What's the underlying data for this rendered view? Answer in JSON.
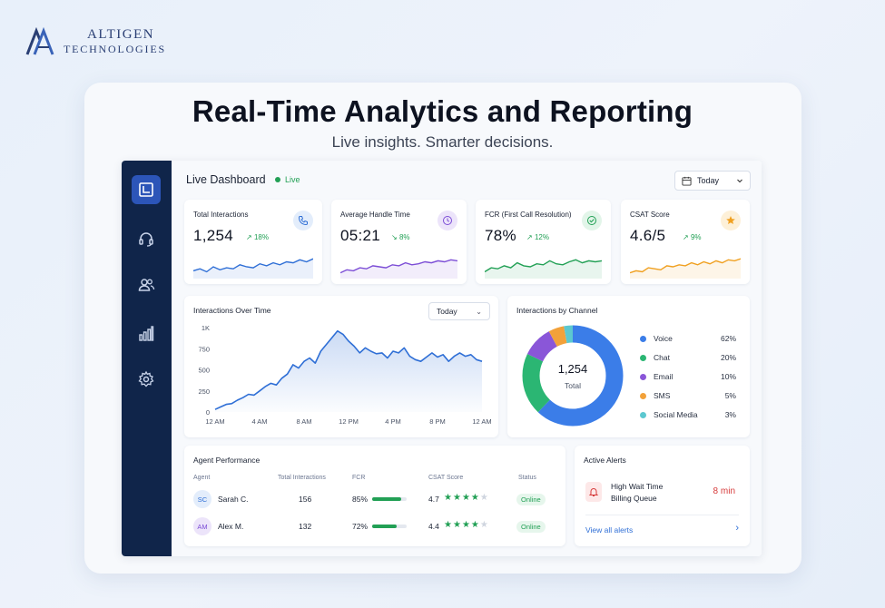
{
  "brand": {
    "line1": "Altigen",
    "line2": "Technologies",
    "line1_display": "ALTIGEN",
    "line2_display": "TECHNOLOGIES"
  },
  "headline": "Real-Time Analytics and Reporting",
  "subheadline": "Live insights. Smarter decisions.",
  "sidebar": {
    "items": [
      {
        "icon": "dashboard-icon",
        "active": true
      },
      {
        "icon": "headset-icon",
        "active": false
      },
      {
        "icon": "users-icon",
        "active": false
      },
      {
        "icon": "bar-chart-icon",
        "active": false
      },
      {
        "icon": "gear-icon",
        "active": false
      }
    ]
  },
  "dashboard": {
    "title": "Live Dashboard",
    "live_label": "Live",
    "date_filter": "Today"
  },
  "kpis": [
    {
      "label": "Total Interactions",
      "value": "1,254",
      "trend": "18%",
      "trend_dir": "up",
      "icon": "phone-icon",
      "color": "#2f6fd6",
      "icon_bg": "#e3edfb"
    },
    {
      "label": "Average Handle Time",
      "value": "05:21",
      "trend": "8%",
      "trend_dir": "down",
      "icon": "clock-icon",
      "color": "#7c4dd6",
      "icon_bg": "#ece4fa"
    },
    {
      "label": "FCR (First Call Resolution)",
      "value": "78%",
      "trend": "12%",
      "trend_dir": "up",
      "icon": "check-circle-icon",
      "color": "#22a055",
      "icon_bg": "#e2f5e9"
    },
    {
      "label": "CSAT Score",
      "value": "4.6/5",
      "trend": "9%",
      "trend_dir": "up",
      "icon": "star-icon",
      "color": "#f0a020",
      "icon_bg": "#fdf0d8"
    }
  ],
  "interactions_over_time": {
    "title": "Interactions Over Time",
    "filter": "Today",
    "chart_data": {
      "type": "area",
      "x_ticks": [
        "12 AM",
        "4 AM",
        "8 AM",
        "12 PM",
        "4 PM",
        "8 PM",
        "12 AM"
      ],
      "y_ticks": [
        "0",
        "250",
        "500",
        "750",
        "1K"
      ],
      "ylim": [
        0,
        1000
      ],
      "x": [
        0,
        0.5,
        1,
        1.5,
        2,
        2.5,
        3,
        3.5,
        4,
        4.5,
        5,
        5.5,
        6,
        6.5,
        7,
        7.5,
        8,
        8.5,
        9,
        9.5,
        10,
        10.5,
        11,
        11.5,
        12,
        12.5,
        13,
        13.5,
        14,
        14.5,
        15,
        15.5,
        16,
        16.5,
        17,
        17.5,
        18,
        18.5,
        19,
        19.5,
        20,
        20.5,
        21,
        21.5,
        22,
        22.5,
        23,
        23.5,
        24
      ],
      "y": [
        30,
        60,
        90,
        100,
        140,
        170,
        210,
        200,
        250,
        300,
        340,
        320,
        400,
        450,
        560,
        520,
        600,
        640,
        580,
        720,
        800,
        880,
        960,
        920,
        840,
        780,
        700,
        760,
        720,
        690,
        700,
        640,
        720,
        700,
        760,
        660,
        620,
        600,
        650,
        700,
        650,
        680,
        600,
        660,
        700,
        660,
        680,
        620,
        600
      ],
      "color": "#2f6fd6"
    }
  },
  "interactions_by_channel": {
    "title": "Interactions by Channel",
    "center_value": "1,254",
    "center_label": "Total",
    "chart_data": {
      "type": "pie",
      "labels": [
        "Voice",
        "Chat",
        "Email",
        "SMS",
        "Social Media"
      ],
      "values": [
        62,
        20,
        10,
        5,
        3
      ],
      "display": [
        "62%",
        "20%",
        "10%",
        "5%",
        "3%"
      ],
      "colors": [
        "#3b7de8",
        "#2bb673",
        "#8a56d8",
        "#f2a13a",
        "#5cc8d0"
      ]
    }
  },
  "agent_performance": {
    "title": "Agent Performance",
    "columns": [
      "Agent",
      "Total Interactions",
      "FCR",
      "CSAT Score",
      "Status"
    ],
    "rows": [
      {
        "initials": "SC",
        "name": "Sarah C.",
        "total": "156",
        "fcr": "85%",
        "fcr_value": 0.85,
        "csat": "4.7",
        "stars": 4,
        "status": "Online",
        "avatar_bg": "#e3edfb",
        "avatar_fg": "#2f6fd6"
      },
      {
        "initials": "AM",
        "name": "Alex M.",
        "total": "132",
        "fcr": "72%",
        "fcr_value": 0.72,
        "csat": "4.4",
        "stars": 4,
        "status": "Online",
        "avatar_bg": "#ece4fa",
        "avatar_fg": "#7c4dd6"
      }
    ]
  },
  "alerts": {
    "title": "Active Alerts",
    "items": [
      {
        "icon": "bell-icon",
        "line1": "High Wait Time",
        "line2": "Billing Queue",
        "value": "8 min"
      }
    ],
    "view_all": "View all alerts"
  }
}
